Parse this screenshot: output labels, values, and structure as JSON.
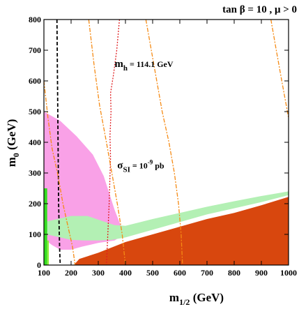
{
  "chart_data": {
    "type": "area",
    "title": "tan β = 10 ,  μ > 0",
    "xlabel": {
      "main": "m",
      "sub": "1/2",
      "unit": " (GeV)"
    },
    "ylabel": {
      "main": "m",
      "sub": "0",
      "unit": " (GeV)"
    },
    "xlim": [
      100,
      1000
    ],
    "ylim": [
      0,
      800
    ],
    "xticks": [
      100,
      200,
      300,
      400,
      500,
      600,
      700,
      800,
      900,
      1000
    ],
    "yticks": [
      0,
      100,
      200,
      300,
      400,
      500,
      600,
      700,
      800
    ],
    "grid": false,
    "regions": [
      {
        "id": "stau-lsp",
        "color": "#d8470e",
        "points": [
          [
            210,
            0
          ],
          [
            230,
            20
          ],
          [
            300,
            40
          ],
          [
            400,
            75
          ],
          [
            500,
            100
          ],
          [
            600,
            125
          ],
          [
            700,
            150
          ],
          [
            800,
            170
          ],
          [
            900,
            195
          ],
          [
            1000,
            222
          ],
          [
            1000,
            0
          ]
        ]
      },
      {
        "id": "g-2-favored",
        "color": "#f9a1e7",
        "points": [
          [
            100,
            500
          ],
          [
            160,
            470
          ],
          [
            220,
            420
          ],
          [
            280,
            360
          ],
          [
            320,
            290
          ],
          [
            360,
            180
          ],
          [
            395,
            100
          ],
          [
            360,
            80
          ],
          [
            300,
            72
          ],
          [
            240,
            60
          ],
          [
            200,
            50
          ],
          [
            160,
            50
          ],
          [
            130,
            65
          ],
          [
            100,
            85
          ]
        ]
      },
      {
        "id": "relic-density",
        "color": "#b3f0b4",
        "points": [
          [
            100,
            140
          ],
          [
            150,
            150
          ],
          [
            200,
            160
          ],
          [
            260,
            160
          ],
          [
            310,
            145
          ],
          [
            360,
            130
          ],
          [
            400,
            128
          ],
          [
            500,
            150
          ],
          [
            600,
            170
          ],
          [
            700,
            190
          ],
          [
            800,
            208
          ],
          [
            900,
            225
          ],
          [
            1000,
            240
          ],
          [
            1000,
            228
          ],
          [
            900,
            205
          ],
          [
            800,
            185
          ],
          [
            700,
            165
          ],
          [
            600,
            140
          ],
          [
            500,
            115
          ],
          [
            400,
            90
          ],
          [
            350,
            82
          ],
          [
            300,
            80
          ],
          [
            250,
            80
          ],
          [
            200,
            82
          ],
          [
            150,
            92
          ],
          [
            100,
            102
          ]
        ]
      },
      {
        "id": "bsg-excluded",
        "color": "#33dd20",
        "points": [
          [
            100,
            0
          ],
          [
            112,
            0
          ],
          [
            112,
            250
          ],
          [
            100,
            250
          ]
        ]
      },
      {
        "id": "lep-chargino",
        "color": "#8bee38",
        "points": [
          [
            112,
            0
          ],
          [
            118,
            0
          ],
          [
            118,
            80
          ],
          [
            112,
            80
          ]
        ]
      }
    ],
    "lines": [
      {
        "id": "chargino-mass-limit",
        "color": "#000000",
        "dash": "5,3",
        "points": [
          [
            148,
            800
          ],
          [
            150,
            600
          ],
          [
            152,
            400
          ],
          [
            154,
            200
          ],
          [
            158,
            50
          ],
          [
            160,
            0
          ]
        ]
      },
      {
        "id": "higgs-mass",
        "color": "#e01d20",
        "dash": "2,2",
        "points": [
          [
            378,
            800
          ],
          [
            368,
            700
          ],
          [
            356,
            620
          ],
          [
            345,
            560
          ],
          [
            347,
            500
          ],
          [
            343,
            420
          ],
          [
            345,
            350
          ],
          [
            340,
            200
          ],
          [
            335,
            100
          ],
          [
            330,
            0
          ]
        ]
      },
      {
        "id": "sigma-1",
        "color": "#f58a14",
        "dash": "6,2,2,2",
        "points": [
          [
            100,
            600
          ],
          [
            115,
            480
          ],
          [
            130,
            380
          ],
          [
            150,
            300
          ],
          [
            170,
            200
          ],
          [
            190,
            120
          ],
          [
            205,
            60
          ],
          [
            215,
            0
          ]
        ]
      },
      {
        "id": "sigma-2",
        "color": "#f58a14",
        "dash": "6,2,2,2",
        "points": [
          [
            265,
            800
          ],
          [
            285,
            650
          ],
          [
            305,
            520
          ],
          [
            330,
            400
          ],
          [
            350,
            300
          ],
          [
            370,
            200
          ],
          [
            388,
            100
          ],
          [
            400,
            0
          ]
        ]
      },
      {
        "id": "sigma-3",
        "color": "#f58a14",
        "dash": "6,2,2,2",
        "points": [
          [
            475,
            800
          ],
          [
            505,
            650
          ],
          [
            535,
            500
          ],
          [
            560,
            400
          ],
          [
            580,
            300
          ],
          [
            595,
            200
          ],
          [
            605,
            100
          ],
          [
            610,
            0
          ]
        ]
      },
      {
        "id": "sigma-4",
        "color": "#f58a14",
        "dash": "6,2,2,2",
        "points": [
          [
            935,
            800
          ],
          [
            955,
            700
          ],
          [
            975,
            600
          ],
          [
            1000,
            480
          ]
        ]
      }
    ],
    "annotations": [
      {
        "id": "higgs-label",
        "main": "m",
        "sub": "h",
        "rest": "  = 114.1 GeV",
        "x": 360,
        "y": 645
      },
      {
        "id": "sigma-label",
        "main": "σ",
        "sub": "SI",
        "mid": " = 10",
        "sup": "-9",
        "rest": " pb",
        "x": 370,
        "y": 315
      }
    ]
  }
}
